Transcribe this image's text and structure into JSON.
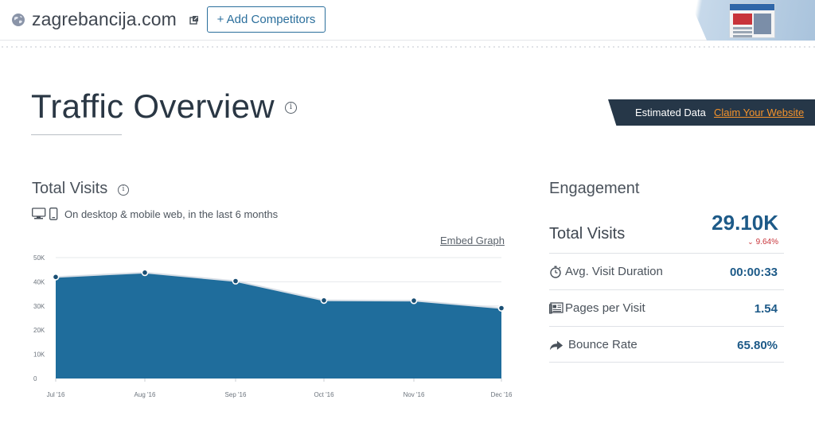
{
  "header": {
    "domain": "zagrebancija.com",
    "add_competitors_label": "+ Add Competitors"
  },
  "page": {
    "title": "Traffic Overview",
    "estimated_label": "Estimated Data",
    "claim_label": "Claim Your Website"
  },
  "visits": {
    "title": "Total Visits",
    "subtitle": "On desktop & mobile web, in the last 6 months",
    "embed_label": "Embed Graph"
  },
  "engagement": {
    "title": "Engagement",
    "total_visits_label": "Total Visits",
    "total_visits_value": "29.10K",
    "total_visits_change": "9.64%",
    "rows": [
      {
        "icon": "stopwatch-icon",
        "label": "Avg. Visit Duration",
        "value": "00:00:33"
      },
      {
        "icon": "pages-icon",
        "label": "Pages per Visit",
        "value": "1.54"
      },
      {
        "icon": "share-arrow-icon",
        "label": "Bounce Rate",
        "value": "65.80%"
      }
    ]
  },
  "colors": {
    "accent": "#2b6f9c",
    "area_fill": "#1f6d9c",
    "value_blue": "#1d5a88",
    "negative": "#c8343a",
    "claim_orange": "#f5932b",
    "banner": "#263748"
  },
  "chart_data": {
    "type": "area",
    "categories": [
      "Jul '16",
      "Aug '16",
      "Sep '16",
      "Oct '16",
      "Nov '16",
      "Dec '16"
    ],
    "values": [
      42000,
      43800,
      40300,
      32300,
      32200,
      29100
    ],
    "yticks": [
      "0",
      "10K",
      "20K",
      "30K",
      "40K",
      "50K"
    ],
    "ylim": [
      0,
      50000
    ],
    "grid": true
  }
}
